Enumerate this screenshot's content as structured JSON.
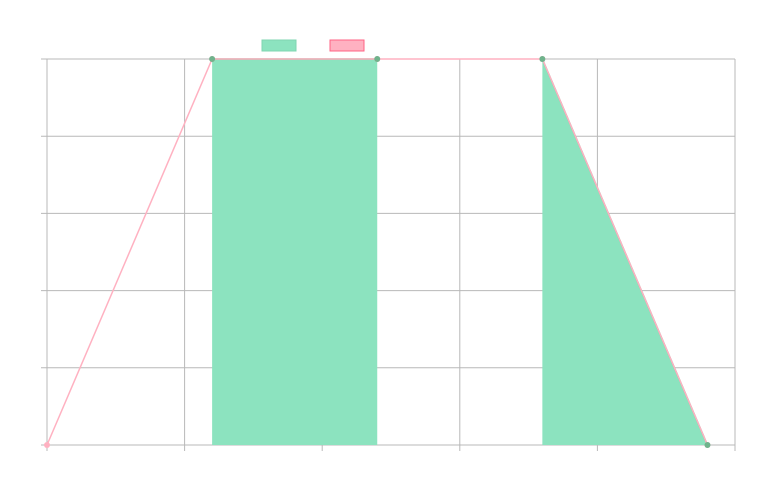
{
  "chart_data": {
    "type": "area",
    "title": "",
    "xlabel": "",
    "ylabel": "",
    "xlim": [
      0,
      5
    ],
    "ylim": [
      0,
      5
    ],
    "grid": true,
    "legend_position": "top-center",
    "series": [
      {
        "name": "",
        "color": "#8ce3bf",
        "stroke": "#6fb38c",
        "kind": "segmented-area",
        "segments": [
          {
            "x": [
              1.2,
              2.4
            ],
            "y": [
              5,
              5
            ]
          },
          {
            "x": [
              3.6,
              4.8
            ],
            "y": [
              5,
              0
            ]
          }
        ]
      },
      {
        "name": "",
        "color": "#ffb1c1",
        "stroke": "#ff6384",
        "kind": "line",
        "x": [
          0,
          1.2,
          2.4,
          3.6,
          4.8
        ],
        "y": [
          0,
          5,
          5,
          5,
          0
        ]
      }
    ]
  }
}
